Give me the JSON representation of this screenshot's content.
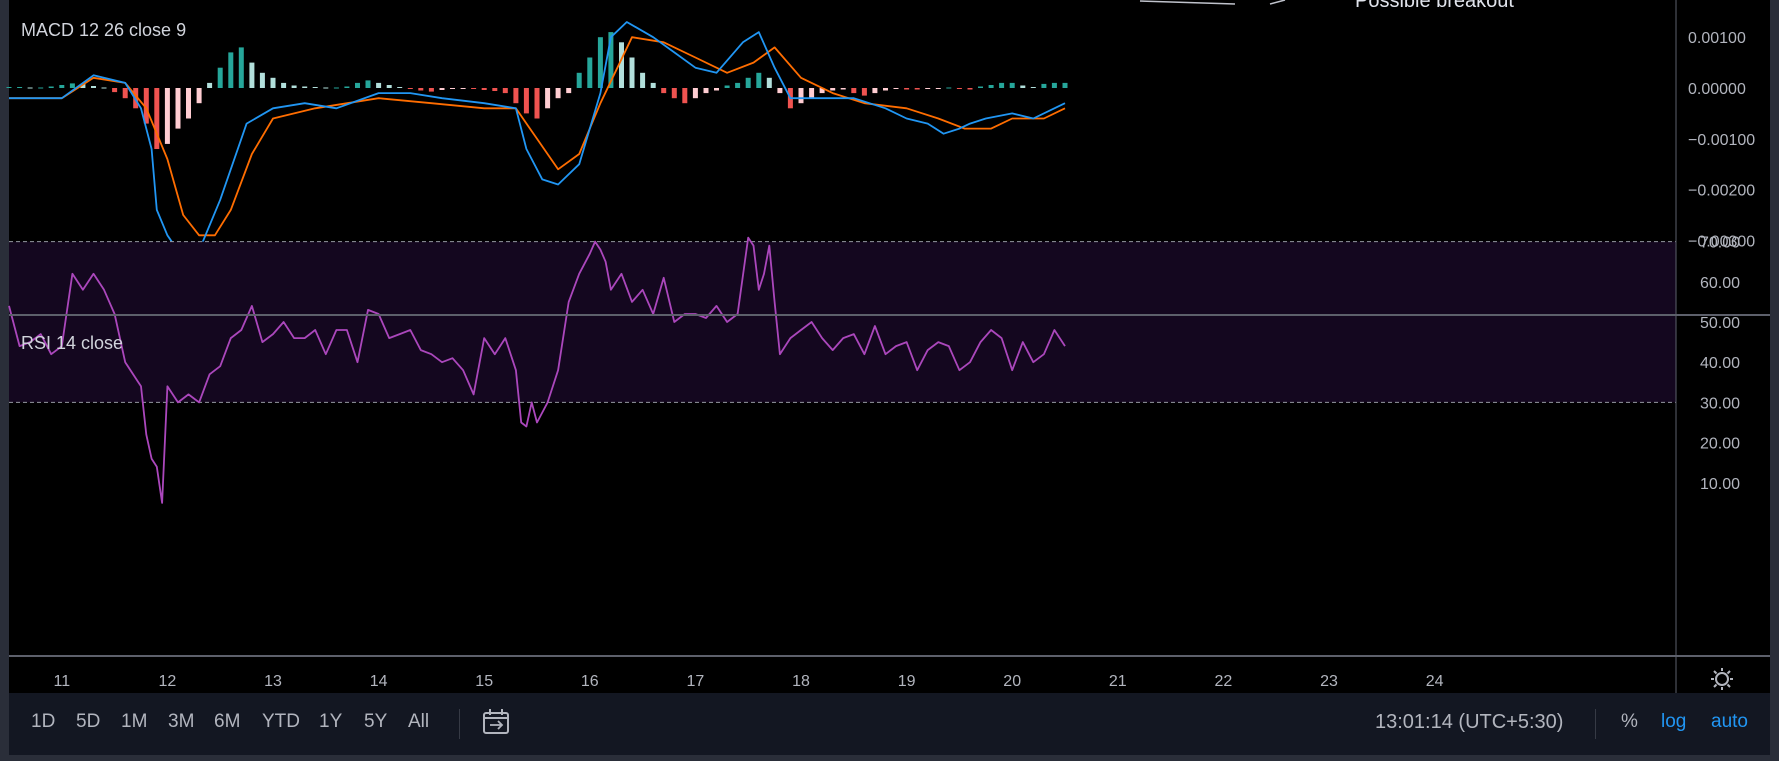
{
  "macd_pane": {
    "title": "MACD 12 26 close 9",
    "axis_labels": [
      "0.00100",
      "0.00000",
      "−0.00100",
      "−0.00200",
      "−0.00300"
    ]
  },
  "rsi_pane": {
    "title": "RSI 14 close",
    "axis_labels": [
      "70.00",
      "60.00",
      "50.00",
      "40.00",
      "30.00",
      "20.00",
      "10.00"
    ]
  },
  "time_axis": {
    "labels": [
      "11",
      "12",
      "13",
      "14",
      "15",
      "16",
      "17",
      "18",
      "19",
      "20",
      "21",
      "22",
      "23",
      "24"
    ]
  },
  "top_strip": {
    "annotation": "Possible breakout"
  },
  "toolbar": {
    "ranges": [
      "1D",
      "5D",
      "1M",
      "3M",
      "6M",
      "YTD",
      "1Y",
      "5Y",
      "All"
    ],
    "time": "13:01:14 (UTC+5:30)",
    "percent": "%",
    "log": "log",
    "auto": "auto"
  },
  "icons": {
    "calendar": "calendar-range-icon",
    "settings": "gear-icon",
    "annotation": "arrow-icon"
  },
  "colors": {
    "background": "#000000",
    "macd_line": "#2196f3",
    "signal_line": "#ff6d00",
    "hist_pos_strong": "#26a69a",
    "hist_pos_weak": "#b2dfdb",
    "hist_neg_strong": "#ef5350",
    "hist_neg_weak": "#ffcdd2",
    "rsi_line": "#ab47bc",
    "rsi_band": "#14071f"
  },
  "chart_data": [
    {
      "type": "line",
      "title": "MACD 12 26 close 9",
      "x_range": [
        10.5,
        20.5
      ],
      "ylim": [
        -0.0035,
        0.0015
      ],
      "series": [
        {
          "name": "MACD",
          "x": [
            10.5,
            10.8,
            11.0,
            11.3,
            11.6,
            11.75,
            11.85,
            11.9,
            12.0,
            12.1,
            12.2,
            12.3,
            12.5,
            12.75,
            13.0,
            13.3,
            13.6,
            14.0,
            14.3,
            14.6,
            15.0,
            15.3,
            15.4,
            15.55,
            15.7,
            15.9,
            16.1,
            16.2,
            16.35,
            16.6,
            16.8,
            17.0,
            17.2,
            17.45,
            17.6,
            17.75,
            17.9,
            18.2,
            18.5,
            18.8,
            19.0,
            19.2,
            19.35,
            19.5,
            19.6,
            19.75,
            20.0,
            20.2,
            20.4,
            20.5
          ],
          "values": [
            -0.0002,
            -0.0002,
            -0.0002,
            0.00025,
            0.0001,
            -0.0004,
            -0.0012,
            -0.0024,
            -0.0029,
            -0.0032,
            -0.0034,
            -0.0032,
            -0.0022,
            -0.0007,
            -0.0004,
            -0.0003,
            -0.0004,
            -0.0001,
            -0.0001,
            -0.0002,
            -0.0003,
            -0.0004,
            -0.0012,
            -0.0018,
            -0.0019,
            -0.0015,
            -0.0001,
            0.001,
            0.0013,
            0.001,
            0.0007,
            0.0004,
            0.0003,
            0.0009,
            0.0011,
            0.0004,
            -0.0002,
            -0.0002,
            -0.0002,
            -0.0004,
            -0.0006,
            -0.0007,
            -0.0009,
            -0.0008,
            -0.0007,
            -0.0006,
            -0.0005,
            -0.0006,
            -0.0004,
            -0.0003
          ]
        },
        {
          "name": "Signal",
          "x": [
            10.5,
            11.0,
            11.3,
            11.6,
            11.8,
            12.0,
            12.15,
            12.3,
            12.45,
            12.6,
            12.8,
            13.0,
            13.4,
            14.0,
            14.5,
            15.0,
            15.3,
            15.5,
            15.7,
            15.9,
            16.1,
            16.4,
            16.7,
            17.0,
            17.3,
            17.55,
            17.75,
            18.0,
            18.3,
            18.6,
            19.0,
            19.3,
            19.55,
            19.8,
            20.0,
            20.3,
            20.5
          ],
          "values": [
            -0.0002,
            -0.0002,
            0.0002,
            0.0001,
            -0.0004,
            -0.0014,
            -0.0025,
            -0.0029,
            -0.0029,
            -0.0024,
            -0.0013,
            -0.0006,
            -0.0004,
            -0.0002,
            -0.0003,
            -0.0004,
            -0.0004,
            -0.001,
            -0.0016,
            -0.0013,
            -0.0003,
            0.001,
            0.0009,
            0.0006,
            0.0003,
            0.0005,
            0.0008,
            0.0002,
            -0.0001,
            -0.0003,
            -0.0004,
            -0.0006,
            -0.0008,
            -0.0008,
            -0.0006,
            -0.0006,
            -0.0004
          ]
        },
        {
          "name": "Histogram",
          "x": [
            10.5,
            10.6,
            10.7,
            10.8,
            10.9,
            11.0,
            11.1,
            11.2,
            11.3,
            11.4,
            11.5,
            11.6,
            11.7,
            11.8,
            11.9,
            12.0,
            12.1,
            12.2,
            12.3,
            12.4,
            12.5,
            12.6,
            12.7,
            12.8,
            12.9,
            13.0,
            13.1,
            13.2,
            13.3,
            13.4,
            13.5,
            13.6,
            13.7,
            13.8,
            13.9,
            14.0,
            14.1,
            14.2,
            14.3,
            14.4,
            14.5,
            14.6,
            14.7,
            14.8,
            14.9,
            15.0,
            15.1,
            15.2,
            15.3,
            15.4,
            15.5,
            15.6,
            15.7,
            15.8,
            15.9,
            16.0,
            16.1,
            16.2,
            16.3,
            16.4,
            16.5,
            16.6,
            16.7,
            16.8,
            16.9,
            17.0,
            17.1,
            17.2,
            17.3,
            17.4,
            17.5,
            17.6,
            17.7,
            17.8,
            17.9,
            18.0,
            18.1,
            18.2,
            18.3,
            18.4,
            18.5,
            18.6,
            18.7,
            18.8,
            18.9,
            19.0,
            19.1,
            19.2,
            19.3,
            19.4,
            19.5,
            19.6,
            19.7,
            19.8,
            19.9,
            20.0,
            20.1,
            20.2,
            20.3,
            20.4,
            20.5
          ],
          "values": [
            2e-05,
            2e-05,
            1e-05,
            1e-05,
            3e-05,
            6e-05,
            9e-05,
            8e-05,
            4e-05,
            1e-05,
            -8e-05,
            -0.0002,
            -0.0004,
            -0.0007,
            -0.0012,
            -0.0011,
            -0.0008,
            -0.0006,
            -0.0003,
            0.0001,
            0.0004,
            0.0007,
            0.0008,
            0.0005,
            0.0003,
            0.0002,
            0.0001,
            5e-05,
            3e-05,
            2e-05,
            1e-05,
            1e-05,
            3e-05,
            0.0001,
            0.00015,
            0.0001,
            6e-05,
            2e-05,
            -2e-05,
            -5e-05,
            -7e-05,
            -4e-05,
            -2e-05,
            -1e-05,
            -2e-05,
            -4e-05,
            -6e-05,
            -0.0001,
            -0.0003,
            -0.0005,
            -0.0006,
            -0.0004,
            -0.0002,
            -0.0001,
            0.0003,
            0.0006,
            0.001,
            0.0011,
            0.0009,
            0.0006,
            0.0003,
            0.0001,
            -0.0001,
            -0.0002,
            -0.0003,
            -0.0002,
            -0.0001,
            -5e-05,
            5e-05,
            0.0001,
            0.0002,
            0.0003,
            0.0002,
            -0.0001,
            -0.0004,
            -0.0003,
            -0.0002,
            -0.0001,
            -5e-05,
            -3e-05,
            -0.0001,
            -0.00015,
            -0.0001,
            -5e-05,
            -2e-05,
            -3e-05,
            -3e-05,
            -2e-05,
            -1e-05,
            1e-05,
            -2e-05,
            -3e-05,
            3e-05,
            6e-05,
            0.0001,
            0.0001,
            5e-05,
            2e-05,
            8e-05,
            0.0001,
            0.0001
          ]
        }
      ]
    },
    {
      "type": "line",
      "title": "RSI 14 close",
      "x_range": [
        10.5,
        20.5
      ],
      "ylim": [
        0,
        75
      ],
      "bands": [
        30,
        70
      ],
      "series": [
        {
          "name": "RSI",
          "x": [
            10.5,
            10.6,
            10.7,
            10.8,
            10.9,
            11.0,
            11.1,
            11.2,
            11.3,
            11.4,
            11.5,
            11.6,
            11.7,
            11.75,
            11.8,
            11.85,
            11.9,
            11.95,
            12.0,
            12.1,
            12.2,
            12.3,
            12.4,
            12.5,
            12.6,
            12.7,
            12.8,
            12.9,
            13.0,
            13.1,
            13.2,
            13.3,
            13.4,
            13.5,
            13.6,
            13.7,
            13.8,
            13.9,
            14.0,
            14.1,
            14.2,
            14.3,
            14.4,
            14.5,
            14.6,
            14.7,
            14.8,
            14.9,
            15.0,
            15.1,
            15.2,
            15.3,
            15.35,
            15.4,
            15.45,
            15.5,
            15.6,
            15.7,
            15.8,
            15.9,
            16.0,
            16.05,
            16.1,
            16.15,
            16.2,
            16.3,
            16.4,
            16.5,
            16.6,
            16.7,
            16.8,
            16.9,
            17.0,
            17.1,
            17.2,
            17.3,
            17.4,
            17.5,
            17.55,
            17.6,
            17.65,
            17.7,
            17.75,
            17.8,
            17.9,
            18.0,
            18.1,
            18.2,
            18.3,
            18.4,
            18.5,
            18.6,
            18.7,
            18.8,
            18.9,
            19.0,
            19.1,
            19.2,
            19.3,
            19.4,
            19.5,
            19.6,
            19.7,
            19.8,
            19.9,
            20.0,
            20.1,
            20.2,
            20.3,
            20.4,
            20.5
          ],
          "values": [
            54,
            44,
            45,
            47,
            42,
            44,
            62,
            58,
            62,
            58,
            52,
            40,
            36,
            34,
            22,
            16,
            14,
            5,
            34,
            30,
            32,
            30,
            37,
            39,
            46,
            48,
            54,
            45,
            47,
            50,
            46,
            46,
            48,
            42,
            48,
            48,
            40,
            53,
            52,
            46,
            47,
            48,
            43,
            42,
            40,
            41,
            38,
            32,
            46,
            42,
            46,
            38,
            25,
            24,
            30,
            25,
            30,
            38,
            55,
            62,
            67,
            70,
            68,
            65,
            58,
            62,
            55,
            58,
            52,
            61,
            50,
            52,
            52,
            51,
            54,
            50,
            52,
            71,
            69,
            58,
            62,
            69,
            55,
            42,
            46,
            48,
            50,
            46,
            43,
            46,
            47,
            42,
            49,
            42,
            44,
            45,
            38,
            43,
            45,
            44,
            38,
            40,
            45,
            48,
            46,
            38,
            45,
            40,
            42,
            48,
            44
          ]
        }
      ]
    }
  ]
}
